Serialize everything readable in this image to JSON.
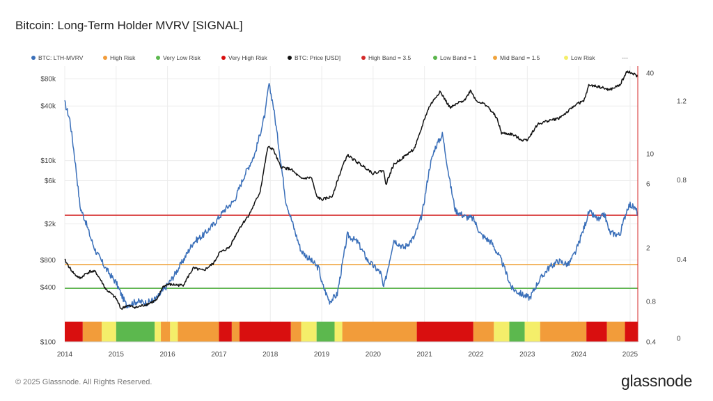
{
  "page": {
    "title": "Bitcoin: Long-Term Holder MVRV [SIGNAL]",
    "footer": "© 2025 Glassnode. All Rights Reserved.",
    "brand": "glassnode",
    "legend_more": "---"
  },
  "colors": {
    "mvrv": "#3a6fb9",
    "price": "#111111",
    "high_band": "#d42a2a",
    "low_band": "#5ab54b",
    "mid_band": "#f0a33c",
    "very_high_risk": "#d90f0f",
    "high_risk": "#f29c3a",
    "low_risk": "#f4ee6a",
    "very_low_risk": "#5cb84e"
  },
  "chart_data": {
    "type": "line",
    "title": "Bitcoin: Long-Term Holder MVRV [SIGNAL]",
    "x_ticks": [
      "2014",
      "2015",
      "2016",
      "2017",
      "2018",
      "2019",
      "2020",
      "2021",
      "2022",
      "2023",
      "2024",
      "2025"
    ],
    "x_range": [
      2014.0,
      2025.15
    ],
    "legend": [
      {
        "label": "BTC: LTH-MVRV",
        "color": "#3a6fb9"
      },
      {
        "label": "High Risk",
        "color": "#f29c3a"
      },
      {
        "label": "Very Low Risk",
        "color": "#5cb84e"
      },
      {
        "label": "Very High Risk",
        "color": "#d90f0f"
      },
      {
        "label": "BTC: Price [USD]",
        "color": "#111111"
      },
      {
        "label": "High Band = 3.5",
        "color": "#d42a2a"
      },
      {
        "label": "Low Band = 1",
        "color": "#5ab54b"
      },
      {
        "label": "Mid Band = 1.5",
        "color": "#f0a33c"
      },
      {
        "label": "Low Risk",
        "color": "#f4ee6a"
      }
    ],
    "price_axis": {
      "scale": "log",
      "range": [
        100,
        110000
      ],
      "ticks": [
        "$80k",
        "$40k",
        "$10k",
        "$6k",
        "$2k",
        "$800",
        "$400",
        "$100"
      ],
      "tick_values": [
        80000,
        40000,
        10000,
        6000,
        2000,
        800,
        400,
        100
      ]
    },
    "mvrv_axis": {
      "scale": "log",
      "range": [
        0.4,
        45
      ],
      "ticks": [
        "40",
        "10",
        "6",
        "2",
        "0.8",
        "0.4"
      ],
      "tick_values": [
        40,
        10,
        6,
        2,
        0.8,
        0.4
      ]
    },
    "outer_axis": {
      "ticks": [
        "1.2",
        "0.8",
        "0.4",
        "0"
      ],
      "tick_values": [
        1.2,
        0.8,
        0.4,
        0
      ]
    },
    "bands": [
      {
        "name": "High Band = 3.5",
        "value": 3.5
      },
      {
        "name": "Mid Band = 1.5",
        "value": 1.5
      },
      {
        "name": "Low Band = 1",
        "value": 1
      }
    ],
    "series": [
      {
        "name": "BTC: Price [USD]",
        "x": [
          2014.0,
          2014.1,
          2014.2,
          2014.3,
          2014.4,
          2014.5,
          2014.6,
          2014.7,
          2014.8,
          2014.9,
          2015.0,
          2015.1,
          2015.2,
          2015.4,
          2015.6,
          2015.8,
          2015.9,
          2016.0,
          2016.3,
          2016.5,
          2016.7,
          2016.9,
          2017.0,
          2017.2,
          2017.4,
          2017.6,
          2017.8,
          2017.95,
          2018.05,
          2018.2,
          2018.4,
          2018.6,
          2018.8,
          2018.9,
          2019.0,
          2019.2,
          2019.4,
          2019.5,
          2019.7,
          2019.9,
          2020.0,
          2020.2,
          2020.25,
          2020.4,
          2020.6,
          2020.8,
          2020.9,
          2021.0,
          2021.1,
          2021.3,
          2021.5,
          2021.6,
          2021.8,
          2021.9,
          2022.0,
          2022.2,
          2022.4,
          2022.5,
          2022.7,
          2022.9,
          2023.0,
          2023.2,
          2023.4,
          2023.6,
          2023.8,
          2023.95,
          2024.1,
          2024.2,
          2024.4,
          2024.6,
          2024.8,
          2024.95,
          2025.0,
          2025.1,
          2025.15
        ],
        "values": [
          800,
          650,
          550,
          500,
          560,
          600,
          590,
          480,
          380,
          340,
          300,
          230,
          250,
          240,
          260,
          290,
          400,
          430,
          420,
          650,
          610,
          740,
          950,
          1100,
          1800,
          2600,
          4500,
          14000,
          13500,
          8500,
          8000,
          6300,
          6500,
          4000,
          3700,
          4000,
          8500,
          11500,
          9500,
          8000,
          7200,
          7800,
          5500,
          9000,
          11000,
          13500,
          19000,
          29000,
          40000,
          58000,
          38000,
          41000,
          48000,
          60000,
          46000,
          41000,
          30000,
          20000,
          19500,
          16800,
          17000,
          25000,
          27500,
          29000,
          35000,
          42000,
          45000,
          68000,
          65000,
          60000,
          68000,
          98000,
          93000,
          88000,
          84000
        ]
      },
      {
        "name": "BTC: LTH-MVRV",
        "x": [
          2014.0,
          2014.1,
          2014.2,
          2014.3,
          2014.4,
          2014.5,
          2014.6,
          2014.8,
          2015.0,
          2015.1,
          2015.2,
          2015.4,
          2015.6,
          2015.8,
          2015.95,
          2016.1,
          2016.3,
          2016.5,
          2016.7,
          2016.9,
          2017.1,
          2017.3,
          2017.5,
          2017.7,
          2017.9,
          2017.97,
          2018.05,
          2018.2,
          2018.3,
          2018.5,
          2018.6,
          2018.8,
          2018.95,
          2019.0,
          2019.15,
          2019.3,
          2019.5,
          2019.7,
          2019.9,
          2020.15,
          2020.2,
          2020.25,
          2020.4,
          2020.6,
          2020.8,
          2020.95,
          2021.1,
          2021.2,
          2021.35,
          2021.5,
          2021.6,
          2021.8,
          2021.95,
          2022.1,
          2022.3,
          2022.5,
          2022.7,
          2022.9,
          2023.05,
          2023.2,
          2023.4,
          2023.6,
          2023.8,
          2023.95,
          2024.1,
          2024.2,
          2024.4,
          2024.5,
          2024.6,
          2024.8,
          2024.95,
          2025.0,
          2025.1,
          2025.15
        ],
        "values": [
          24,
          18,
          9,
          4,
          3.2,
          2.4,
          1.9,
          1.4,
          1.1,
          0.9,
          0.75,
          0.8,
          0.78,
          0.85,
          1.0,
          1.2,
          1.6,
          2.2,
          2.5,
          3.0,
          3.8,
          4.5,
          7,
          10,
          20,
          33,
          24,
          9,
          4.5,
          2.5,
          1.9,
          1.6,
          1.4,
          1.1,
          0.8,
          0.9,
          2.5,
          2.2,
          1.6,
          1.3,
          1.0,
          1.2,
          2.3,
          2.0,
          2.4,
          3.5,
          8,
          11,
          14,
          6,
          3.8,
          3.4,
          3.3,
          2.5,
          2.2,
          1.6,
          1.0,
          0.9,
          0.85,
          1.1,
          1.4,
          1.6,
          1.5,
          1.9,
          2.8,
          3.7,
          3.2,
          3.6,
          2.6,
          2.5,
          4.0,
          4.2,
          3.9,
          3.6
        ]
      }
    ],
    "signal_bar": {
      "categories": [
        "Very High Risk",
        "High Risk",
        "Low Risk",
        "Very Low Risk"
      ],
      "segments": [
        {
          "start": 2014.0,
          "end": 2014.35,
          "state": "Very High Risk"
        },
        {
          "start": 2014.35,
          "end": 2014.72,
          "state": "High Risk"
        },
        {
          "start": 2014.72,
          "end": 2015.0,
          "state": "Low Risk"
        },
        {
          "start": 2015.0,
          "end": 2015.75,
          "state": "Very Low Risk"
        },
        {
          "start": 2015.75,
          "end": 2015.87,
          "state": "Low Risk"
        },
        {
          "start": 2015.87,
          "end": 2016.05,
          "state": "High Risk"
        },
        {
          "start": 2016.05,
          "end": 2016.2,
          "state": "Low Risk"
        },
        {
          "start": 2016.2,
          "end": 2017.0,
          "state": "High Risk"
        },
        {
          "start": 2017.0,
          "end": 2017.25,
          "state": "Very High Risk"
        },
        {
          "start": 2017.25,
          "end": 2017.4,
          "state": "High Risk"
        },
        {
          "start": 2017.4,
          "end": 2018.4,
          "state": "Very High Risk"
        },
        {
          "start": 2018.4,
          "end": 2018.6,
          "state": "High Risk"
        },
        {
          "start": 2018.6,
          "end": 2018.9,
          "state": "Low Risk"
        },
        {
          "start": 2018.9,
          "end": 2019.25,
          "state": "Very Low Risk"
        },
        {
          "start": 2019.25,
          "end": 2019.4,
          "state": "Low Risk"
        },
        {
          "start": 2019.4,
          "end": 2020.85,
          "state": "High Risk"
        },
        {
          "start": 2020.85,
          "end": 2021.95,
          "state": "Very High Risk"
        },
        {
          "start": 2021.95,
          "end": 2022.35,
          "state": "High Risk"
        },
        {
          "start": 2022.35,
          "end": 2022.65,
          "state": "Low Risk"
        },
        {
          "start": 2022.65,
          "end": 2022.95,
          "state": "Very Low Risk"
        },
        {
          "start": 2022.95,
          "end": 2023.25,
          "state": "Low Risk"
        },
        {
          "start": 2023.25,
          "end": 2024.15,
          "state": "High Risk"
        },
        {
          "start": 2024.15,
          "end": 2024.55,
          "state": "Very High Risk"
        },
        {
          "start": 2024.55,
          "end": 2024.9,
          "state": "High Risk"
        },
        {
          "start": 2024.9,
          "end": 2025.15,
          "state": "Very High Risk"
        }
      ]
    }
  }
}
